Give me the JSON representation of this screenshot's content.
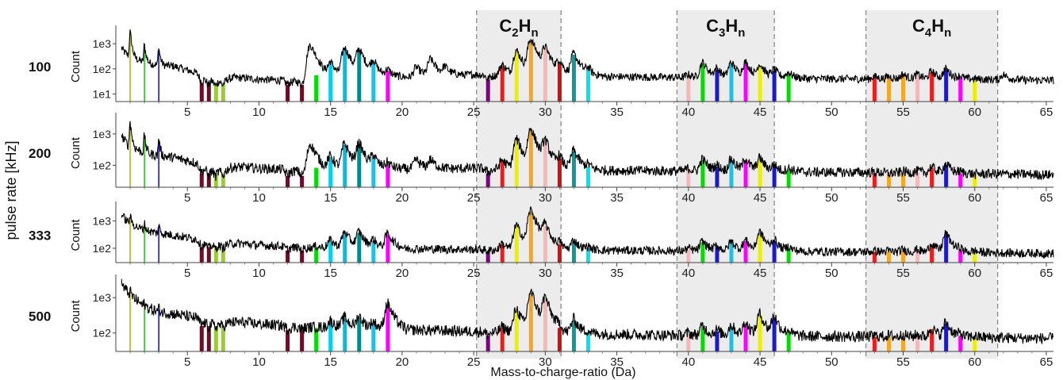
{
  "chart_data": {
    "type": "line",
    "xlabel": "Mass-to-charge-ratio  (Da)",
    "ylabel_outer": "pulse rate [kHz]",
    "ylabel_panel": "Count",
    "xlim": [
      0,
      65.5
    ],
    "x_ticks": [
      5,
      10,
      15,
      20,
      25,
      30,
      35,
      40,
      45,
      50,
      55,
      60,
      65
    ],
    "y_scale": "log",
    "groups": [
      {
        "label": {
          "base": "C",
          "sub1": "2",
          "mid": "H",
          "sub2": "n"
        },
        "range": [
          25.2,
          31.1
        ]
      },
      {
        "label": {
          "base": "C",
          "sub1": "3",
          "mid": "H",
          "sub2": "n"
        },
        "range": [
          39.2,
          46.0
        ]
      },
      {
        "label": {
          "base": "C",
          "sub1": "4",
          "mid": "H",
          "sub2": "n"
        },
        "range": [
          52.4,
          61.6
        ]
      }
    ],
    "colors": {
      "m1": "#b5b518",
      "m2": "#22cc22",
      "m3": "#1a1acc",
      "m6": "#6e0d25",
      "m7": "#8a2040",
      "m7b": "#9acd32",
      "m12": "#6e0d25",
      "m13": "#6e0d25",
      "m14": "#00dd00",
      "m15": "#00d0f0",
      "m16": "#1ab5d6",
      "m17": "#008b8b",
      "m18": "#20c0e0",
      "m19": "#ff00ff",
      "m26": "#800080",
      "m27": "#ee1c1c",
      "m28": "#eeee00",
      "m29": "#f5a623",
      "m30": "#f4b8b8",
      "m31": "#cc1111",
      "m32": "#119999",
      "m33": "#00e5ee"
    },
    "panels": [
      {
        "rate": "100",
        "y_ticks": [
          "1e1",
          "1e2",
          "1e3"
        ],
        "ylim": [
          5,
          3000
        ],
        "baseline": {
          "m1": 300,
          "m2": 180,
          "m3": 140,
          "m4": 130,
          "m6": 60,
          "m10": 38,
          "m13": 32,
          "m25": 60,
          "m33": 50,
          "m40": 45,
          "m50": 40,
          "m60": 38,
          "m65": 35
        },
        "peaks": [
          {
            "x": 1,
            "y": 3000,
            "color": "m1"
          },
          {
            "x": 2,
            "y": 900,
            "color": "m2"
          },
          {
            "x": 3,
            "y": 700,
            "color": "m3"
          },
          {
            "x": 6,
            "y": 30,
            "color": "m6"
          },
          {
            "x": 6.5,
            "y": 30,
            "color": "m6"
          },
          {
            "x": 7,
            "y": 30,
            "color": "m7b"
          },
          {
            "x": 7.5,
            "y": 30,
            "color": "m7b"
          },
          {
            "x": 12,
            "y": 25,
            "color": "m12"
          },
          {
            "x": 13,
            "y": 25,
            "color": "m13"
          },
          {
            "x": 13.6,
            "y": 900,
            "color": null
          },
          {
            "x": 14,
            "y": 60,
            "color": "m14"
          },
          {
            "x": 15,
            "y": 200,
            "color": "m15"
          },
          {
            "x": 16,
            "y": 700,
            "color": "m16"
          },
          {
            "x": 17,
            "y": 600,
            "color": "m17"
          },
          {
            "x": 18,
            "y": 200,
            "color": "m18"
          },
          {
            "x": 19,
            "y": 90,
            "color": "m19"
          },
          {
            "x": 21,
            "y": 120,
            "color": null
          },
          {
            "x": 22,
            "y": 250,
            "color": null
          },
          {
            "x": 23,
            "y": 120,
            "color": null
          },
          {
            "x": 26,
            "y": 40,
            "color": "m26"
          },
          {
            "x": 27,
            "y": 150,
            "color": "m27"
          },
          {
            "x": 28,
            "y": 550,
            "color": "m28"
          },
          {
            "x": 29,
            "y": 1500,
            "color": "m29"
          },
          {
            "x": 30,
            "y": 700,
            "color": "m30"
          },
          {
            "x": 31,
            "y": 200,
            "color": "m31"
          },
          {
            "x": 32,
            "y": 400,
            "color": "m32"
          },
          {
            "x": 33,
            "y": 100,
            "color": "m33"
          },
          {
            "x": 40,
            "y": 60,
            "color": "m30"
          },
          {
            "x": 41,
            "y": 180,
            "color": "m14"
          },
          {
            "x": 42,
            "y": 100,
            "color": "m3"
          },
          {
            "x": 43,
            "y": 180,
            "color": "m18"
          },
          {
            "x": 44,
            "y": 180,
            "color": "m19"
          },
          {
            "x": 45,
            "y": 150,
            "color": "m28"
          },
          {
            "x": 46,
            "y": 90,
            "color": "m3"
          },
          {
            "x": 47,
            "y": 70,
            "color": "m14"
          },
          {
            "x": 53,
            "y": 50,
            "color": "m27"
          },
          {
            "x": 54,
            "y": 50,
            "color": "m29"
          },
          {
            "x": 55,
            "y": 60,
            "color": "m29"
          },
          {
            "x": 56,
            "y": 60,
            "color": "m30"
          },
          {
            "x": 57,
            "y": 80,
            "color": "m27"
          },
          {
            "x": 58,
            "y": 100,
            "color": "m3"
          },
          {
            "x": 59,
            "y": 50,
            "color": "m19"
          },
          {
            "x": 60,
            "y": 40,
            "color": "m28"
          },
          {
            "x": 62,
            "y": 60,
            "color": null
          }
        ]
      },
      {
        "rate": "200",
        "y_ticks": [
          "1e2",
          "1e3"
        ],
        "ylim": [
          20,
          3000
        ],
        "baseline": {
          "m1": 400,
          "m2": 250,
          "m3": 200,
          "m4": 180,
          "m6": 110,
          "m10": 80,
          "m13": 70,
          "m25": 80,
          "m33": 70,
          "m40": 65,
          "m50": 60,
          "m60": 55,
          "m65": 50
        },
        "peaks": [
          {
            "x": 1,
            "y": 2500,
            "color": "m1"
          },
          {
            "x": 2,
            "y": 900,
            "color": "m2"
          },
          {
            "x": 3,
            "y": 700,
            "color": "m3"
          },
          {
            "x": 6,
            "y": 60,
            "color": "m6"
          },
          {
            "x": 6.5,
            "y": 60,
            "color": "m6"
          },
          {
            "x": 7,
            "y": 60,
            "color": "m7b"
          },
          {
            "x": 7.5,
            "y": 60,
            "color": "m7b"
          },
          {
            "x": 12,
            "y": 50,
            "color": "m12"
          },
          {
            "x": 13,
            "y": 50,
            "color": "m13"
          },
          {
            "x": 13.6,
            "y": 500,
            "color": null
          },
          {
            "x": 14,
            "y": 90,
            "color": "m14"
          },
          {
            "x": 15,
            "y": 200,
            "color": "m15"
          },
          {
            "x": 16,
            "y": 500,
            "color": "m16"
          },
          {
            "x": 17,
            "y": 500,
            "color": "m17"
          },
          {
            "x": 18,
            "y": 200,
            "color": "m18"
          },
          {
            "x": 19,
            "y": 120,
            "color": "m19"
          },
          {
            "x": 21,
            "y": 150,
            "color": null
          },
          {
            "x": 22,
            "y": 150,
            "color": null
          },
          {
            "x": 26,
            "y": 60,
            "color": "m26"
          },
          {
            "x": 27,
            "y": 150,
            "color": "m27"
          },
          {
            "x": 28,
            "y": 700,
            "color": "m28"
          },
          {
            "x": 29,
            "y": 1500,
            "color": "m29"
          },
          {
            "x": 30,
            "y": 600,
            "color": "m30"
          },
          {
            "x": 31,
            "y": 180,
            "color": "m31"
          },
          {
            "x": 32,
            "y": 300,
            "color": "m32"
          },
          {
            "x": 33,
            "y": 100,
            "color": "m33"
          },
          {
            "x": 40,
            "y": 80,
            "color": "m30"
          },
          {
            "x": 41,
            "y": 160,
            "color": "m14"
          },
          {
            "x": 42,
            "y": 100,
            "color": "m3"
          },
          {
            "x": 43,
            "y": 160,
            "color": "m18"
          },
          {
            "x": 44,
            "y": 160,
            "color": "m19"
          },
          {
            "x": 45,
            "y": 170,
            "color": "m28"
          },
          {
            "x": 46,
            "y": 100,
            "color": "m3"
          },
          {
            "x": 47,
            "y": 80,
            "color": "m14"
          },
          {
            "x": 53,
            "y": 60,
            "color": "m27"
          },
          {
            "x": 54,
            "y": 55,
            "color": "m29"
          },
          {
            "x": 55,
            "y": 65,
            "color": "m29"
          },
          {
            "x": 56,
            "y": 65,
            "color": "m30"
          },
          {
            "x": 57,
            "y": 90,
            "color": "m27"
          },
          {
            "x": 58,
            "y": 110,
            "color": "m3"
          },
          {
            "x": 59,
            "y": 60,
            "color": "m19"
          },
          {
            "x": 60,
            "y": 50,
            "color": "m28"
          }
        ]
      },
      {
        "rate": "333",
        "y_ticks": [
          "1e2",
          "1e3"
        ],
        "ylim": [
          30,
          3000
        ],
        "baseline": {
          "m1": 800,
          "m2": 450,
          "m3": 350,
          "m4": 300,
          "m6": 200,
          "m10": 130,
          "m13": 110,
          "m25": 90,
          "m33": 85,
          "m40": 80,
          "m50": 75,
          "m60": 70,
          "m65": 65
        },
        "peaks": [
          {
            "x": 1,
            "y": 1500,
            "color": "m1"
          },
          {
            "x": 2,
            "y": 800,
            "color": "m2"
          },
          {
            "x": 3,
            "y": 700,
            "color": "m3"
          },
          {
            "x": 6,
            "y": 120,
            "color": "m6"
          },
          {
            "x": 6.5,
            "y": 120,
            "color": "m6"
          },
          {
            "x": 7,
            "y": 120,
            "color": "m7b"
          },
          {
            "x": 7.5,
            "y": 120,
            "color": "m7b"
          },
          {
            "x": 12,
            "y": 90,
            "color": "m12"
          },
          {
            "x": 13,
            "y": 90,
            "color": "m13"
          },
          {
            "x": 14,
            "y": 120,
            "color": "m14"
          },
          {
            "x": 15,
            "y": 200,
            "color": "m15"
          },
          {
            "x": 16,
            "y": 400,
            "color": "m16"
          },
          {
            "x": 17,
            "y": 400,
            "color": "m17"
          },
          {
            "x": 18,
            "y": 200,
            "color": "m18"
          },
          {
            "x": 19,
            "y": 350,
            "color": "m19"
          },
          {
            "x": 26,
            "y": 80,
            "color": "m26"
          },
          {
            "x": 27,
            "y": 150,
            "color": "m27"
          },
          {
            "x": 28,
            "y": 700,
            "color": "m28"
          },
          {
            "x": 29,
            "y": 2500,
            "color": "m29"
          },
          {
            "x": 30,
            "y": 700,
            "color": "m30"
          },
          {
            "x": 31,
            "y": 150,
            "color": "m31"
          },
          {
            "x": 32,
            "y": 200,
            "color": "m32"
          },
          {
            "x": 33,
            "y": 110,
            "color": "m33"
          },
          {
            "x": 40,
            "y": 100,
            "color": "m30"
          },
          {
            "x": 41,
            "y": 180,
            "color": "m14"
          },
          {
            "x": 42,
            "y": 120,
            "color": "m3"
          },
          {
            "x": 43,
            "y": 180,
            "color": "m18"
          },
          {
            "x": 44,
            "y": 200,
            "color": "m19"
          },
          {
            "x": 45,
            "y": 400,
            "color": "m28"
          },
          {
            "x": 46,
            "y": 200,
            "color": "m3"
          },
          {
            "x": 47,
            "y": 110,
            "color": "m14"
          },
          {
            "x": 53,
            "y": 80,
            "color": "m27"
          },
          {
            "x": 54,
            "y": 80,
            "color": "m29"
          },
          {
            "x": 55,
            "y": 90,
            "color": "m29"
          },
          {
            "x": 56,
            "y": 90,
            "color": "m30"
          },
          {
            "x": 57,
            "y": 150,
            "color": "m27"
          },
          {
            "x": 58,
            "y": 350,
            "color": "m3"
          },
          {
            "x": 59,
            "y": 90,
            "color": "m19"
          },
          {
            "x": 60,
            "y": 80,
            "color": "m28"
          }
        ]
      },
      {
        "rate": "500",
        "y_ticks": [
          "1e2",
          "1e3"
        ],
        "ylim": [
          30,
          3000
        ],
        "baseline": {
          "m1": 1200,
          "m2": 550,
          "m3": 400,
          "m4": 350,
          "m6": 250,
          "m10": 180,
          "m13": 150,
          "m25": 110,
          "m33": 95,
          "m40": 85,
          "m50": 80,
          "m60": 75,
          "m65": 70
        },
        "peaks": [
          {
            "x": 1,
            "y": 1500,
            "color": "m1"
          },
          {
            "x": 2,
            "y": 700,
            "color": "m2"
          },
          {
            "x": 3,
            "y": 500,
            "color": "m3"
          },
          {
            "x": 6,
            "y": 170,
            "color": "m6"
          },
          {
            "x": 6.5,
            "y": 170,
            "color": "m6"
          },
          {
            "x": 7,
            "y": 170,
            "color": "m7b"
          },
          {
            "x": 7.5,
            "y": 170,
            "color": "m7b"
          },
          {
            "x": 12,
            "y": 130,
            "color": "m12"
          },
          {
            "x": 13,
            "y": 130,
            "color": "m13"
          },
          {
            "x": 14,
            "y": 150,
            "color": "m14"
          },
          {
            "x": 15,
            "y": 220,
            "color": "m15"
          },
          {
            "x": 16,
            "y": 280,
            "color": "m16"
          },
          {
            "x": 17,
            "y": 300,
            "color": "m17"
          },
          {
            "x": 18,
            "y": 200,
            "color": "m18"
          },
          {
            "x": 19,
            "y": 700,
            "color": "m19"
          },
          {
            "x": 26,
            "y": 90,
            "color": "m26"
          },
          {
            "x": 27,
            "y": 150,
            "color": "m27"
          },
          {
            "x": 28,
            "y": 500,
            "color": "m28"
          },
          {
            "x": 29,
            "y": 1500,
            "color": "m29"
          },
          {
            "x": 30,
            "y": 1000,
            "color": "m30"
          },
          {
            "x": 31,
            "y": 150,
            "color": "m31"
          },
          {
            "x": 32,
            "y": 250,
            "color": "m32"
          },
          {
            "x": 33,
            "y": 110,
            "color": "m33"
          },
          {
            "x": 40,
            "y": 100,
            "color": "m30"
          },
          {
            "x": 41,
            "y": 160,
            "color": "m14"
          },
          {
            "x": 42,
            "y": 120,
            "color": "m3"
          },
          {
            "x": 43,
            "y": 170,
            "color": "m18"
          },
          {
            "x": 44,
            "y": 200,
            "color": "m19"
          },
          {
            "x": 45,
            "y": 350,
            "color": "m28"
          },
          {
            "x": 46,
            "y": 300,
            "color": "m3"
          },
          {
            "x": 47,
            "y": 110,
            "color": "m14"
          },
          {
            "x": 53,
            "y": 85,
            "color": "m27"
          },
          {
            "x": 54,
            "y": 85,
            "color": "m29"
          },
          {
            "x": 55,
            "y": 90,
            "color": "m29"
          },
          {
            "x": 56,
            "y": 90,
            "color": "m30"
          },
          {
            "x": 57,
            "y": 140,
            "color": "m27"
          },
          {
            "x": 58,
            "y": 200,
            "color": "m3"
          },
          {
            "x": 59,
            "y": 90,
            "color": "m19"
          },
          {
            "x": 60,
            "y": 80,
            "color": "m28"
          }
        ]
      }
    ]
  }
}
